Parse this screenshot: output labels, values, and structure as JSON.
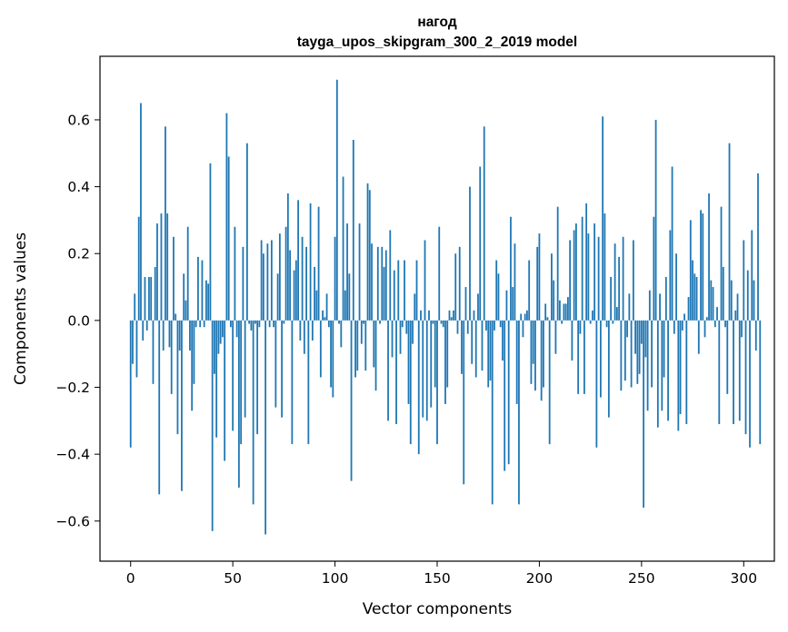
{
  "chart_data": {
    "type": "bar",
    "title": "нагод",
    "subtitle": "tayga_upos_skipgram_300_2_2019 model",
    "xlabel": "Vector components",
    "ylabel": "Components values",
    "xlim": [
      -15,
      315
    ],
    "ylim": [
      -0.72,
      0.79
    ],
    "xticks": [
      0,
      50,
      100,
      150,
      200,
      250,
      300
    ],
    "yticks": [
      -0.6,
      -0.4,
      -0.2,
      0.0,
      0.2,
      0.4,
      0.6
    ],
    "xtick_labels": [
      "0",
      "50",
      "100",
      "150",
      "200",
      "250",
      "300"
    ],
    "ytick_labels": [
      "−0.6",
      "−0.4",
      "−0.2",
      "0.0",
      "0.2",
      "0.4",
      "0.6"
    ],
    "grid": false,
    "bar_color": "#1f77b4",
    "values": [
      -0.38,
      -0.13,
      0.08,
      -0.17,
      0.31,
      0.65,
      -0.06,
      0.13,
      -0.03,
      0.13,
      0.13,
      -0.19,
      0.16,
      0.29,
      -0.52,
      0.32,
      -0.09,
      0.58,
      0.32,
      -0.08,
      -0.22,
      0.25,
      0.02,
      -0.34,
      -0.09,
      -0.51,
      0.14,
      0.06,
      0.28,
      -0.09,
      -0.27,
      -0.19,
      -0.02,
      0.19,
      -0.02,
      0.18,
      -0.02,
      0.12,
      0.11,
      0.47,
      -0.63,
      -0.16,
      -0.35,
      -0.1,
      -0.07,
      -0.05,
      -0.42,
      0.62,
      0.49,
      -0.02,
      -0.33,
      0.28,
      -0.05,
      -0.5,
      -0.37,
      0.22,
      -0.29,
      0.53,
      -0.01,
      -0.03,
      -0.55,
      -0.01,
      -0.34,
      -0.02,
      0.24,
      0.2,
      -0.64,
      0.23,
      -0.02,
      0.24,
      -0.02,
      -0.26,
      0.14,
      0.26,
      -0.29,
      -0.01,
      0.28,
      0.38,
      0.21,
      -0.37,
      0.15,
      0.18,
      0.36,
      -0.06,
      0.25,
      -0.1,
      0.22,
      -0.37,
      0.35,
      -0.06,
      0.16,
      0.09,
      0.34,
      -0.17,
      0.03,
      0.01,
      0.08,
      -0.02,
      -0.2,
      -0.23,
      0.25,
      0.72,
      -0.01,
      -0.08,
      0.43,
      0.09,
      0.29,
      0.14,
      -0.48,
      0.54,
      -0.17,
      -0.15,
      0.29,
      -0.07,
      -0.01,
      -0.15,
      0.41,
      0.39,
      0.23,
      -0.14,
      -0.21,
      0.22,
      -0.01,
      0.22,
      0.16,
      0.21,
      -0.3,
      0.27,
      -0.11,
      0.15,
      -0.31,
      0.18,
      -0.1,
      -0.02,
      0.18,
      -0.04,
      -0.25,
      -0.37,
      -0.07,
      0.08,
      0.18,
      -0.4,
      0.03,
      -0.29,
      0.24,
      -0.3,
      0.03,
      -0.26,
      -0.01,
      -0.2,
      -0.37,
      0.28,
      -0.01,
      -0.02,
      -0.25,
      -0.2,
      0.03,
      0.01,
      0.03,
      0.2,
      -0.04,
      0.22,
      -0.16,
      -0.49,
      0.1,
      -0.04,
      0.4,
      -0.13,
      0.03,
      -0.17,
      0.08,
      0.46,
      -0.15,
      0.58,
      -0.03,
      -0.2,
      -0.18,
      -0.55,
      -0.03,
      0.18,
      0.14,
      -0.02,
      -0.12,
      -0.45,
      0.09,
      -0.43,
      0.31,
      0.1,
      0.23,
      -0.25,
      -0.55,
      0.02,
      -0.05,
      0.02,
      0.03,
      0.18,
      -0.19,
      -0.13,
      -0.21,
      0.22,
      0.26,
      -0.24,
      -0.2,
      0.05,
      0.01,
      -0.37,
      0.2,
      0.12,
      -0.1,
      0.34,
      0.06,
      -0.01,
      0.05,
      0.05,
      0.07,
      0.24,
      -0.12,
      0.27,
      0.29,
      -0.22,
      -0.04,
      0.31,
      -0.22,
      0.35,
      0.26,
      -0.01,
      0.03,
      0.29,
      -0.38,
      0.25,
      -0.23,
      0.61,
      0.32,
      -0.02,
      -0.29,
      0.13,
      -0.01,
      0.23,
      0.04,
      0.19,
      -0.21,
      0.25,
      -0.18,
      -0.05,
      0.08,
      -0.2,
      0.24,
      -0.1,
      -0.19,
      -0.16,
      -0.07,
      -0.56,
      -0.11,
      -0.27,
      0.09,
      -0.2,
      0.31,
      0.6,
      -0.32,
      0.08,
      -0.27,
      -0.17,
      0.13,
      -0.3,
      0.27,
      0.46,
      -0.04,
      0.2,
      -0.33,
      -0.28,
      -0.03,
      0.02,
      -0.31,
      0.07,
      0.3,
      0.18,
      0.14,
      0.13,
      -0.1,
      0.33,
      0.32,
      -0.05,
      0.01,
      0.38,
      0.12,
      0.1,
      -0.02,
      0.04,
      -0.31,
      0.34,
      0.16,
      -0.02,
      -0.22,
      0.53,
      0.12,
      -0.31,
      0.03,
      0.08,
      -0.3,
      -0.05,
      0.24,
      -0.34,
      0.15,
      -0.38,
      0.27,
      0.12,
      -0.09,
      0.44,
      -0.37
    ]
  }
}
